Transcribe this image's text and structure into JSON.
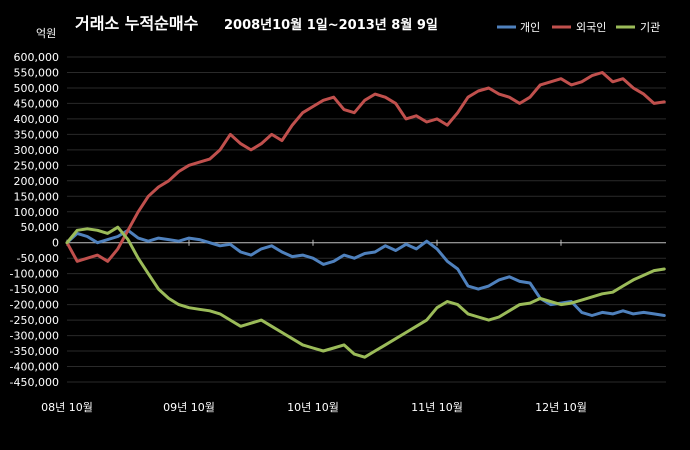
{
  "chart_data": {
    "type": "line",
    "title": "거래소 누적순매수",
    "subtitle": "2008년10월 1일~2013년 8월 9일",
    "ylabel": "억원",
    "xlabel": "",
    "ylim": [
      -450000,
      600000
    ],
    "ytick_step": 50000,
    "x_ticks": [
      "08년 10월",
      "09년 10월",
      "10년 10월",
      "11년 10월",
      "12년 10월"
    ],
    "x_dates": [
      "2008-10",
      "2008-11",
      "2008-12",
      "2009-01",
      "2009-02",
      "2009-03",
      "2009-04",
      "2009-05",
      "2009-06",
      "2009-07",
      "2009-08",
      "2009-09",
      "2009-10",
      "2009-11",
      "2009-12",
      "2010-01",
      "2010-02",
      "2010-03",
      "2010-04",
      "2010-05",
      "2010-06",
      "2010-07",
      "2010-08",
      "2010-09",
      "2010-10",
      "2010-11",
      "2010-12",
      "2011-01",
      "2011-02",
      "2011-03",
      "2011-04",
      "2011-05",
      "2011-06",
      "2011-07",
      "2011-08",
      "2011-09",
      "2011-10",
      "2011-11",
      "2011-12",
      "2012-01",
      "2012-02",
      "2012-03",
      "2012-04",
      "2012-05",
      "2012-06",
      "2012-07",
      "2012-08",
      "2012-09",
      "2012-10",
      "2012-11",
      "2012-12",
      "2013-01",
      "2013-02",
      "2013-03",
      "2013-04",
      "2013-05",
      "2013-06",
      "2013-07",
      "2013-08"
    ],
    "grid": true,
    "legend_position": "top-right",
    "series": [
      {
        "name": "개인",
        "color": "#4f81bd",
        "values": [
          0,
          30000,
          20000,
          0,
          10000,
          20000,
          40000,
          15000,
          5000,
          15000,
          10000,
          5000,
          15000,
          10000,
          0,
          -10000,
          -5000,
          -30000,
          -40000,
          -20000,
          -10000,
          -30000,
          -45000,
          -40000,
          -50000,
          -70000,
          -60000,
          -40000,
          -50000,
          -35000,
          -30000,
          -10000,
          -25000,
          -5000,
          -20000,
          5000,
          -20000,
          -60000,
          -85000,
          -140000,
          -150000,
          -140000,
          -120000,
          -110000,
          -125000,
          -130000,
          -180000,
          -200000,
          -195000,
          -190000,
          -225000,
          -235000,
          -225000,
          -230000,
          -220000,
          -230000,
          -225000,
          -230000,
          -235000
        ]
      },
      {
        "name": "외국인",
        "color": "#c0504d",
        "values": [
          0,
          -60000,
          -50000,
          -40000,
          -60000,
          -20000,
          40000,
          100000,
          150000,
          180000,
          200000,
          230000,
          250000,
          260000,
          270000,
          300000,
          350000,
          320000,
          300000,
          320000,
          350000,
          330000,
          380000,
          420000,
          440000,
          460000,
          470000,
          430000,
          420000,
          460000,
          480000,
          470000,
          450000,
          400000,
          410000,
          390000,
          400000,
          380000,
          420000,
          470000,
          490000,
          500000,
          480000,
          470000,
          450000,
          470000,
          510000,
          520000,
          530000,
          510000,
          520000,
          540000,
          550000,
          520000,
          530000,
          500000,
          480000,
          450000,
          455000
        ]
      },
      {
        "name": "기관",
        "color": "#9bbb59",
        "values": [
          0,
          40000,
          45000,
          40000,
          30000,
          50000,
          10000,
          -50000,
          -100000,
          -150000,
          -180000,
          -200000,
          -210000,
          -215000,
          -220000,
          -230000,
          -250000,
          -270000,
          -260000,
          -250000,
          -270000,
          -290000,
          -310000,
          -330000,
          -340000,
          -350000,
          -340000,
          -330000,
          -360000,
          -370000,
          -350000,
          -330000,
          -310000,
          -290000,
          -270000,
          -250000,
          -210000,
          -190000,
          -200000,
          -230000,
          -240000,
          -250000,
          -240000,
          -220000,
          -200000,
          -195000,
          -180000,
          -190000,
          -200000,
          -195000,
          -185000,
          -175000,
          -165000,
          -160000,
          -140000,
          -120000,
          -105000,
          -90000,
          -85000
        ]
      }
    ]
  }
}
